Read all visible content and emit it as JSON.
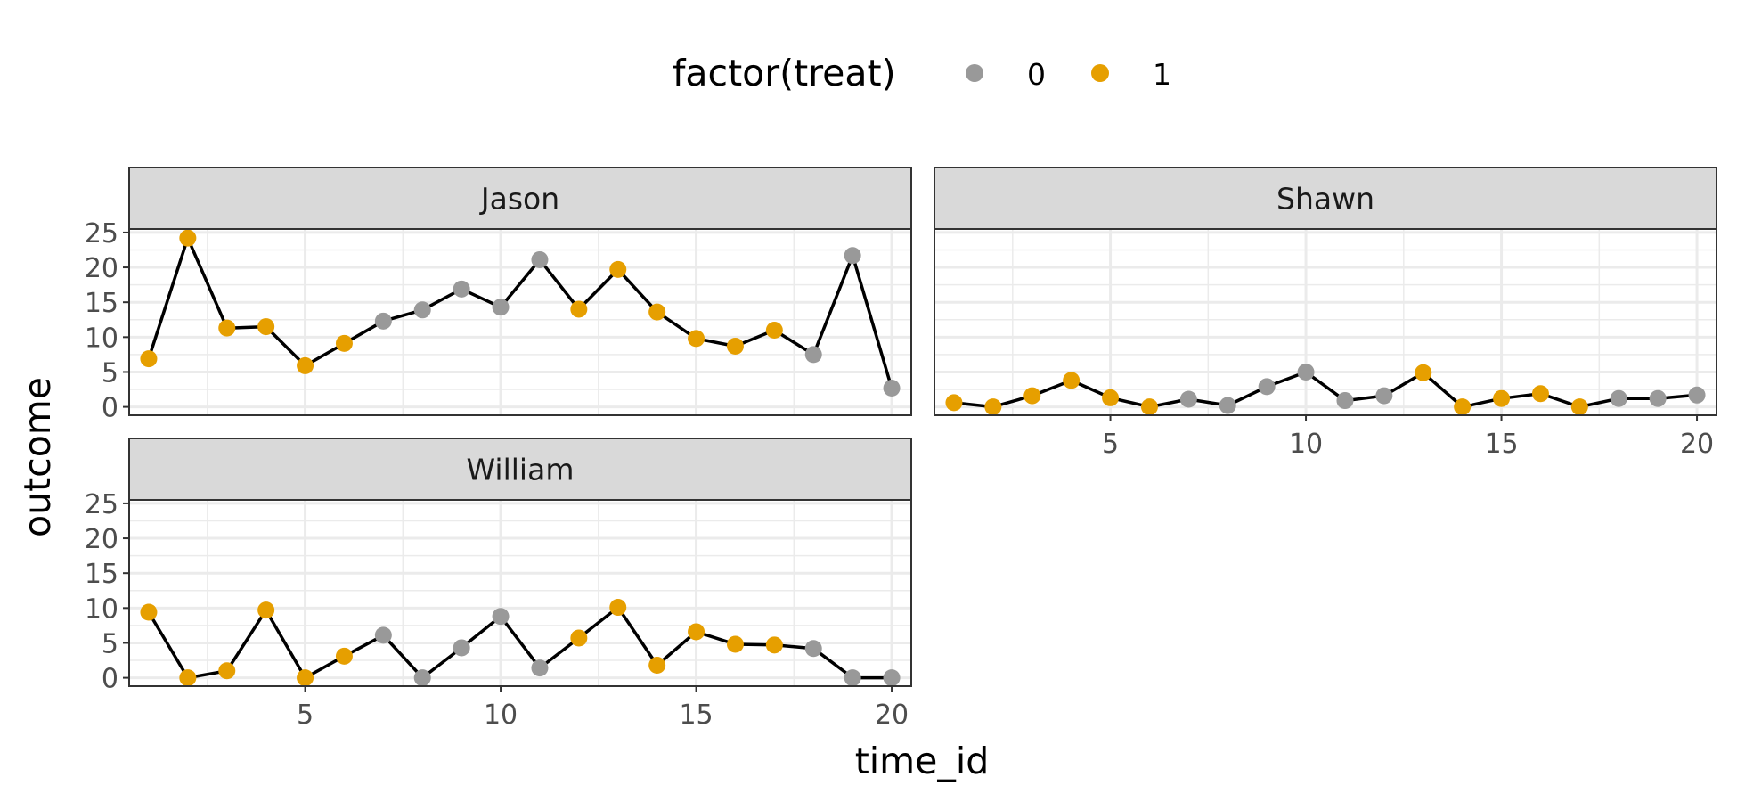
{
  "chart_data": {
    "type": "line",
    "xlabel": "time_id",
    "ylabel": "outcome",
    "xlim": [
      0.5,
      20.5
    ],
    "ylim": [
      -1.2,
      25.5
    ],
    "x_ticks": [
      5,
      10,
      15,
      20
    ],
    "y_ticks": [
      0,
      5,
      10,
      15,
      20,
      25
    ],
    "grid": true,
    "legend": {
      "title": "factor(treat)",
      "position": "top",
      "entries": [
        {
          "label": "0",
          "color": "#999999"
        },
        {
          "label": "1",
          "color": "#E69F00"
        }
      ]
    },
    "x": [
      1,
      2,
      3,
      4,
      5,
      6,
      7,
      8,
      9,
      10,
      11,
      12,
      13,
      14,
      15,
      16,
      17,
      18,
      19,
      20
    ],
    "panels": [
      {
        "label": "Jason",
        "values": [
          6.9,
          24.2,
          11.3,
          11.5,
          5.9,
          9.1,
          12.3,
          13.9,
          16.9,
          14.3,
          21.1,
          14.0,
          19.7,
          13.6,
          9.8,
          8.7,
          11.0,
          7.5,
          21.7,
          2.7
        ],
        "treat": [
          1,
          1,
          1,
          1,
          1,
          1,
          0,
          0,
          0,
          0,
          0,
          1,
          1,
          1,
          1,
          1,
          1,
          0,
          0,
          0
        ]
      },
      {
        "label": "Shawn",
        "values": [
          0.6,
          0.0,
          1.6,
          3.8,
          1.3,
          0.0,
          1.1,
          0.2,
          2.9,
          5.0,
          0.9,
          1.6,
          4.9,
          0.0,
          1.2,
          1.9,
          0.0,
          1.2,
          1.2,
          1.7
        ],
        "treat": [
          1,
          1,
          1,
          1,
          1,
          1,
          0,
          0,
          0,
          0,
          0,
          0,
          1,
          1,
          1,
          1,
          1,
          0,
          0,
          0
        ]
      },
      {
        "label": "William",
        "values": [
          9.4,
          0.0,
          1.0,
          9.7,
          0.0,
          3.1,
          6.1,
          0.0,
          4.3,
          8.8,
          1.4,
          5.7,
          10.1,
          1.8,
          6.6,
          4.8,
          4.7,
          4.2,
          0.0,
          0.0
        ],
        "treat": [
          1,
          1,
          1,
          1,
          1,
          1,
          0,
          0,
          0,
          0,
          0,
          1,
          1,
          1,
          1,
          1,
          1,
          0,
          0,
          0
        ]
      }
    ]
  }
}
